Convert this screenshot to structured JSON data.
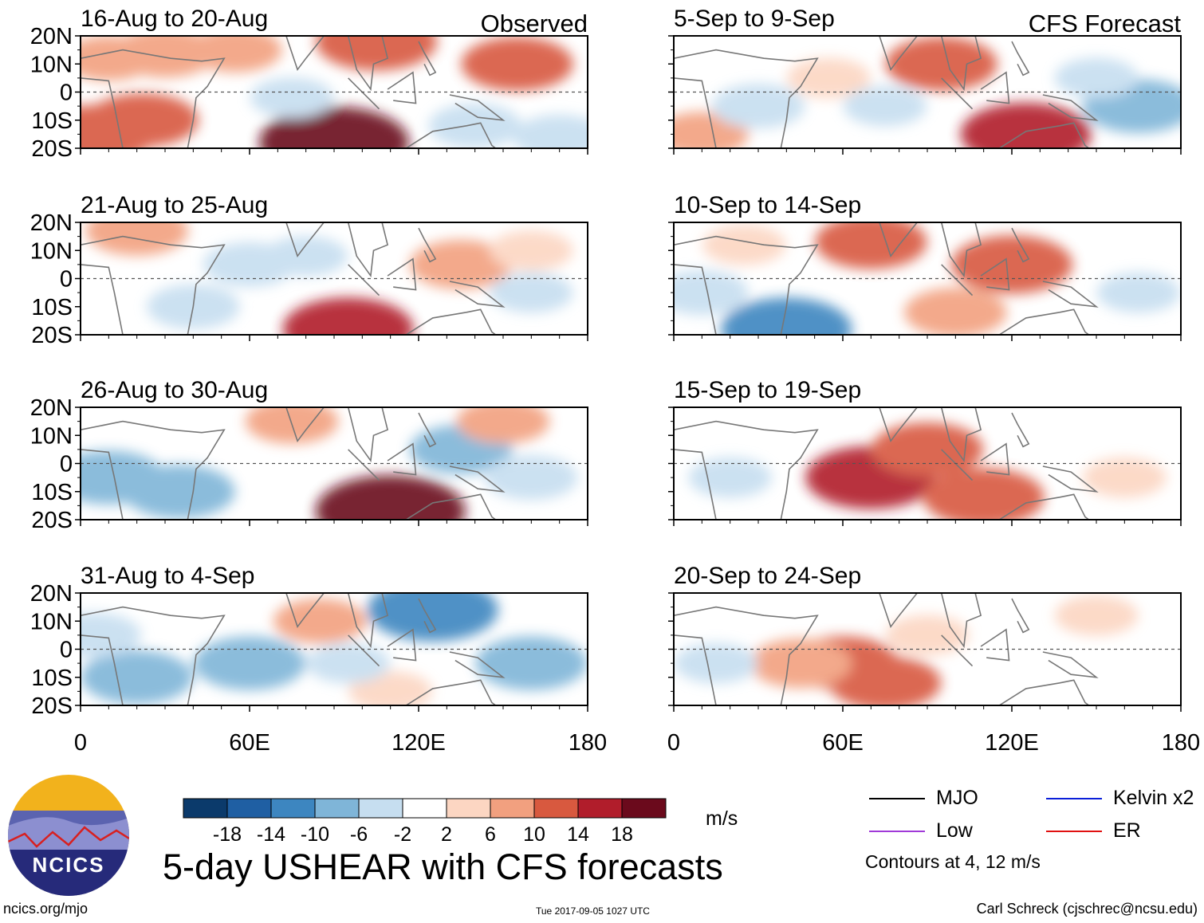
{
  "figure_title": "5-day USHEAR with CFS forecasts",
  "units": "m/s",
  "contour_note": "Contours at 4, 12 m/s",
  "footer": {
    "website": "ncics.org/mjo",
    "timestamp": "Tue 2017-09-05 1027 UTC",
    "author": "Carl Schreck (cjschrec@ncsu.edu)"
  },
  "logo": {
    "text": "NCICS"
  },
  "colorbar": {
    "tick_labels": [
      "-18",
      "-14",
      "-10",
      "-6",
      "-2",
      "2",
      "6",
      "10",
      "14",
      "18"
    ],
    "colors": [
      "#0b3a6b",
      "#1f5fa3",
      "#3d86c0",
      "#7fb5d8",
      "#c6def0",
      "#ffffff",
      "#fcd6c2",
      "#f2a07f",
      "#d8593f",
      "#b11d2b",
      "#6b0a1c"
    ]
  },
  "legend": [
    {
      "label": "MJO",
      "color": "#000000"
    },
    {
      "label": "Kelvin x2",
      "color": "#0a1fd9"
    },
    {
      "label": "Low",
      "color": "#a03ad8"
    },
    {
      "label": "ER",
      "color": "#e01010"
    }
  ],
  "chart_data": {
    "type": "heatmap",
    "variable": "5-day USHEAR anomaly",
    "x_ticks": [
      "0",
      "60E",
      "120E",
      "180"
    ],
    "y_ticks": [
      "20N",
      "10N",
      "0",
      "10S",
      "20S"
    ],
    "xlim": [
      0,
      180
    ],
    "ylim": [
      -20,
      20
    ],
    "column_headers": [
      "Observed",
      "CFS Forecast"
    ],
    "panels": [
      {
        "title": "16-Aug to 20-Aug",
        "column": "Observed",
        "anomalies": [
          {
            "lon": 22,
            "lat": -10,
            "value": 10
          },
          {
            "lon": 5,
            "lat": -15,
            "value": 12
          },
          {
            "lon": 30,
            "lat": 14,
            "value": 8
          },
          {
            "lon": 10,
            "lat": 12,
            "value": 6
          },
          {
            "lon": 55,
            "lat": 15,
            "value": 6
          },
          {
            "lon": 90,
            "lat": -18,
            "value": 18
          },
          {
            "lon": 105,
            "lat": 18,
            "value": 12
          },
          {
            "lon": 155,
            "lat": 10,
            "value": 10
          },
          {
            "lon": 140,
            "lat": -12,
            "value": -6
          },
          {
            "lon": 75,
            "lat": -2,
            "value": -4
          },
          {
            "lon": 170,
            "lat": -16,
            "value": -6
          }
        ]
      },
      {
        "title": "5-Sep to 9-Sep",
        "column": "CFS Forecast",
        "anomalies": [
          {
            "lon": 165,
            "lat": -5,
            "value": -10
          },
          {
            "lon": 150,
            "lat": 5,
            "value": -4
          },
          {
            "lon": 95,
            "lat": 10,
            "value": 10
          },
          {
            "lon": 125,
            "lat": -15,
            "value": 14
          },
          {
            "lon": 10,
            "lat": -15,
            "value": 6
          },
          {
            "lon": 55,
            "lat": 5,
            "value": 4
          },
          {
            "lon": 30,
            "lat": -5,
            "value": -6
          },
          {
            "lon": 75,
            "lat": -5,
            "value": -4
          }
        ]
      },
      {
        "title": "21-Aug to 25-Aug",
        "column": "Observed",
        "anomalies": [
          {
            "lon": 20,
            "lat": 17,
            "value": 8
          },
          {
            "lon": 95,
            "lat": -18,
            "value": 14
          },
          {
            "lon": 135,
            "lat": 5,
            "value": 8
          },
          {
            "lon": 40,
            "lat": -10,
            "value": -6
          },
          {
            "lon": 60,
            "lat": 5,
            "value": -6
          },
          {
            "lon": 160,
            "lat": -5,
            "value": -4
          },
          {
            "lon": 160,
            "lat": 10,
            "value": 4
          },
          {
            "lon": 80,
            "lat": 8,
            "value": -4
          }
        ]
      },
      {
        "title": "10-Sep to 14-Sep",
        "column": "CFS Forecast",
        "anomalies": [
          {
            "lon": 120,
            "lat": 5,
            "value": 12
          },
          {
            "lon": 70,
            "lat": 13,
            "value": 10
          },
          {
            "lon": 40,
            "lat": -18,
            "value": -14
          },
          {
            "lon": 100,
            "lat": -12,
            "value": 8
          },
          {
            "lon": 10,
            "lat": -5,
            "value": -6
          },
          {
            "lon": 165,
            "lat": -5,
            "value": -4
          },
          {
            "lon": 25,
            "lat": 12,
            "value": 4
          }
        ]
      },
      {
        "title": "26-Aug to 30-Aug",
        "column": "Observed",
        "anomalies": [
          {
            "lon": 10,
            "lat": -5,
            "value": -10
          },
          {
            "lon": 35,
            "lat": -10,
            "value": -10
          },
          {
            "lon": 110,
            "lat": -17,
            "value": 18
          },
          {
            "lon": 75,
            "lat": 15,
            "value": 6
          },
          {
            "lon": 135,
            "lat": 5,
            "value": -8
          },
          {
            "lon": 160,
            "lat": -5,
            "value": -6
          },
          {
            "lon": 150,
            "lat": 15,
            "value": 6
          }
        ]
      },
      {
        "title": "15-Sep to 19-Sep",
        "column": "CFS Forecast",
        "anomalies": [
          {
            "lon": 70,
            "lat": -5,
            "value": 14
          },
          {
            "lon": 110,
            "lat": -12,
            "value": 12
          },
          {
            "lon": 90,
            "lat": 5,
            "value": 10
          },
          {
            "lon": 20,
            "lat": -5,
            "value": -4
          },
          {
            "lon": 160,
            "lat": -5,
            "value": 4
          },
          {
            "lon": 130,
            "lat": 12,
            "value": -2
          }
        ]
      },
      {
        "title": "31-Aug to 4-Sep",
        "column": "Observed",
        "anomalies": [
          {
            "lon": 20,
            "lat": -10,
            "value": -10
          },
          {
            "lon": 60,
            "lat": -5,
            "value": -10
          },
          {
            "lon": 125,
            "lat": 14,
            "value": -14
          },
          {
            "lon": 160,
            "lat": -5,
            "value": -10
          },
          {
            "lon": 85,
            "lat": 10,
            "value": 6
          },
          {
            "lon": 110,
            "lat": -15,
            "value": 4
          },
          {
            "lon": 5,
            "lat": 5,
            "value": -6
          },
          {
            "lon": 95,
            "lat": -5,
            "value": -4
          }
        ]
      },
      {
        "title": "20-Sep to 24-Sep",
        "column": "CFS Forecast",
        "anomalies": [
          {
            "lon": 60,
            "lat": -5,
            "value": 10
          },
          {
            "lon": 75,
            "lat": -12,
            "value": 10
          },
          {
            "lon": 45,
            "lat": -5,
            "value": 8
          },
          {
            "lon": 90,
            "lat": 5,
            "value": 4
          },
          {
            "lon": 15,
            "lat": -5,
            "value": -4
          },
          {
            "lon": 150,
            "lat": 12,
            "value": 4
          }
        ]
      }
    ]
  }
}
